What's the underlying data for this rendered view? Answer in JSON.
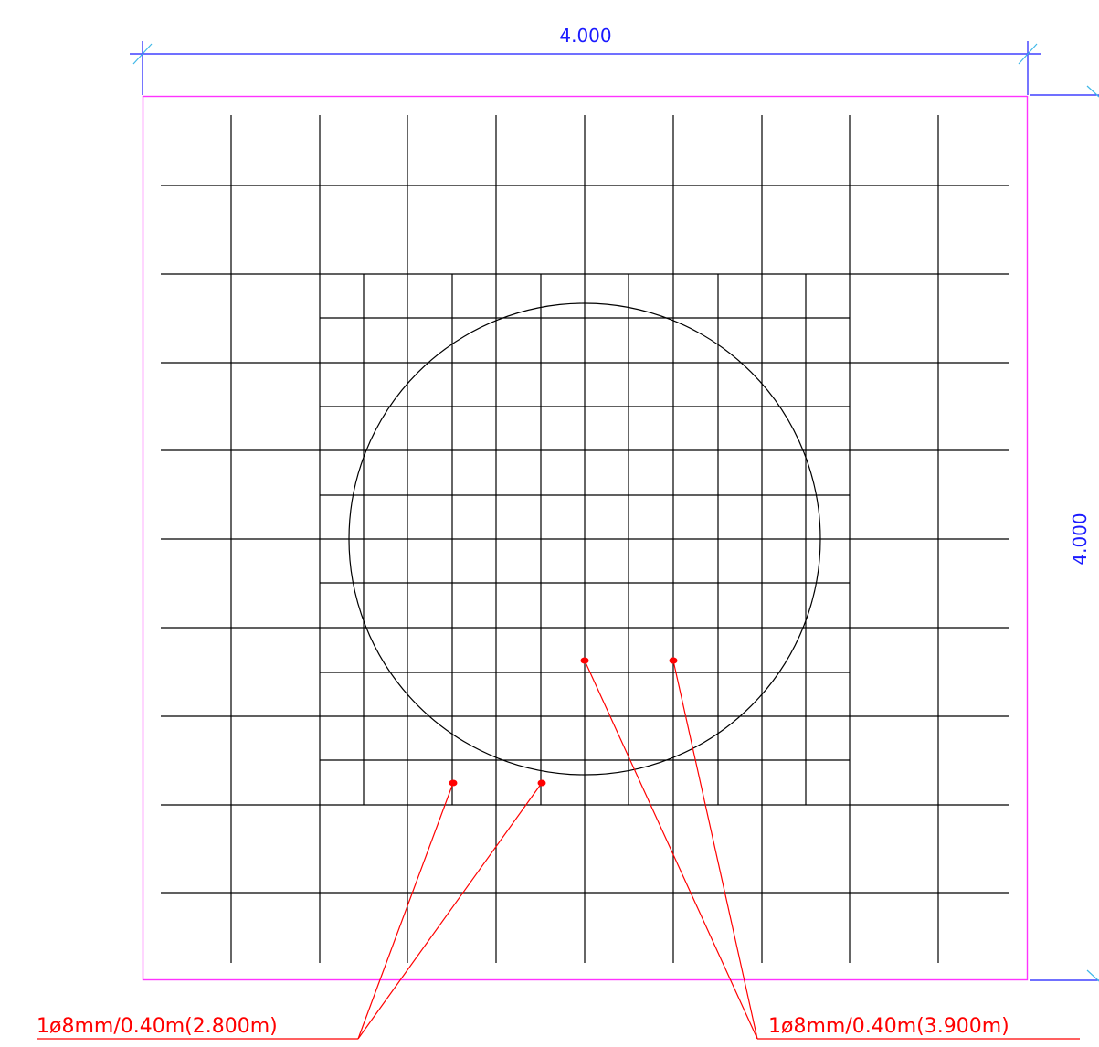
{
  "drawing": {
    "width_dimension": "4.000",
    "height_dimension": "4.000",
    "colors": {
      "dimension": "#1a1aff",
      "dimension_tick": "#3fb8e8",
      "boundary": "#ff33ff",
      "rebar": "#000000",
      "callout": "#ff0000"
    },
    "callouts": {
      "left": {
        "text": "1ø8mm/0.40m(2.800m)"
      },
      "right": {
        "text": "1ø8mm/0.40m(3.900m)"
      }
    }
  }
}
